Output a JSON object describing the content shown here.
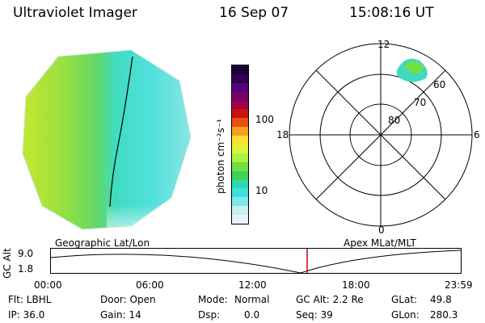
{
  "header": {
    "title": "Ultraviolet Imager",
    "date": "16 Sep 07",
    "time": "15:08:16 UT"
  },
  "colorbar": {
    "label": "photon cm⁻²s⁻¹",
    "ticks": [
      "100",
      "10"
    ],
    "colors": [
      "#1a0033",
      "#2d0055",
      "#55007a",
      "#7a006a",
      "#a0004a",
      "#cc1010",
      "#e85010",
      "#f5a020",
      "#f8e030",
      "#e0f040",
      "#b0f040",
      "#70e040",
      "#40d060",
      "#30d8b0",
      "#40e0e0",
      "#80e8e8",
      "#c8eeee",
      "#e8f4f4"
    ]
  },
  "polar_plot": {
    "lat_labels": [
      "80",
      "70",
      "60"
    ],
    "mlt_labels": {
      "top": "12",
      "left": "18",
      "right": "6",
      "bottom": "0"
    }
  },
  "timeline": {
    "left_label": "Geographic Lat/Lon",
    "right_label": "Apex MLat/MLT",
    "y_axis_label": "GC Alt",
    "y_ticks": [
      "9.0",
      "1.8"
    ],
    "x_ticks": [
      "00:00",
      "06:00",
      "12:00",
      "18:00",
      "23:59"
    ],
    "marker_color": "#cc0000"
  },
  "info": {
    "row1": {
      "flt": "Flt: LBHL",
      "door": "Door: Open",
      "mode_label": "Mode:",
      "mode_value": "Normal",
      "gcalt": "GC Alt: 2.2 Re",
      "glat_label": "GLat:",
      "glat_value": "49.8"
    },
    "row2": {
      "ip": "IP: 36.0",
      "gain": "Gain: 14",
      "dsp_label": "Dsp:",
      "dsp_value": "0.0",
      "seq": "Seq: 39",
      "glon_label": "GLon:",
      "glon_value": "280.3"
    }
  }
}
